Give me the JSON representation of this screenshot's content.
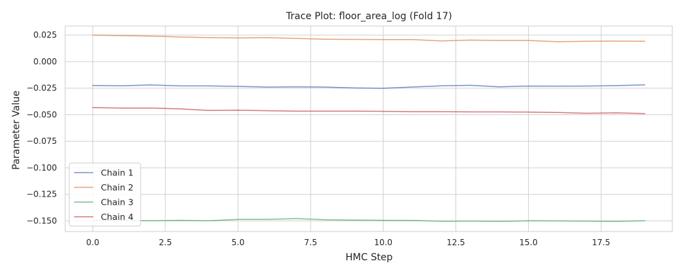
{
  "chart_data": {
    "type": "line",
    "title": "Trace Plot: floor_area_log (Fold 17)",
    "xlabel": "HMC Step",
    "ylabel": "Parameter Value",
    "xlim": [
      -0.95,
      19.95
    ],
    "ylim": [
      -0.16,
      0.0335
    ],
    "xticks": [
      0.0,
      2.5,
      5.0,
      7.5,
      10.0,
      12.5,
      15.0,
      17.5
    ],
    "xtick_labels": [
      "0.0",
      "2.5",
      "5.0",
      "7.5",
      "10.0",
      "12.5",
      "15.0",
      "17.5"
    ],
    "yticks": [
      0.025,
      0.0,
      -0.025,
      -0.05,
      -0.075,
      -0.1,
      -0.125,
      -0.15
    ],
    "ytick_labels": [
      "0.025",
      "0.000",
      "−0.025",
      "−0.050",
      "−0.075",
      "−0.100",
      "−0.125",
      "−0.150"
    ],
    "grid": true,
    "legend_position": "lower-left",
    "x": [
      0,
      1,
      2,
      3,
      4,
      5,
      6,
      7,
      8,
      9,
      10,
      11,
      12,
      13,
      14,
      15,
      16,
      17,
      18,
      19
    ],
    "series": [
      {
        "name": "Chain 1",
        "color": "#4c72b0",
        "values": [
          -0.0225,
          -0.0228,
          -0.022,
          -0.0229,
          -0.0229,
          -0.0233,
          -0.024,
          -0.0238,
          -0.024,
          -0.0248,
          -0.0251,
          -0.0239,
          -0.0228,
          -0.0223,
          -0.0237,
          -0.023,
          -0.0231,
          -0.023,
          -0.0226,
          -0.0219
        ]
      },
      {
        "name": "Chain 2",
        "color": "#dd8452",
        "values": [
          0.0249,
          0.0245,
          0.024,
          0.0232,
          0.0226,
          0.0223,
          0.0226,
          0.0218,
          0.0211,
          0.0209,
          0.0207,
          0.0207,
          0.0195,
          0.0203,
          0.0199,
          0.0199,
          0.0187,
          0.0191,
          0.0193,
          0.0191
        ]
      },
      {
        "name": "Chain 3",
        "color": "#55a868",
        "values": [
          -0.1493,
          -0.1494,
          -0.1499,
          -0.1494,
          -0.1499,
          -0.1485,
          -0.1485,
          -0.1478,
          -0.1489,
          -0.1492,
          -0.1494,
          -0.1495,
          -0.1503,
          -0.1501,
          -0.1504,
          -0.1499,
          -0.15,
          -0.1501,
          -0.1505,
          -0.1499
        ]
      },
      {
        "name": "Chain 4",
        "color": "#c44e52",
        "values": [
          -0.0433,
          -0.0438,
          -0.0438,
          -0.0445,
          -0.046,
          -0.0458,
          -0.0462,
          -0.0467,
          -0.0467,
          -0.0467,
          -0.0468,
          -0.0471,
          -0.0471,
          -0.0474,
          -0.0474,
          -0.0475,
          -0.0479,
          -0.0487,
          -0.0483,
          -0.0489
        ]
      }
    ]
  }
}
